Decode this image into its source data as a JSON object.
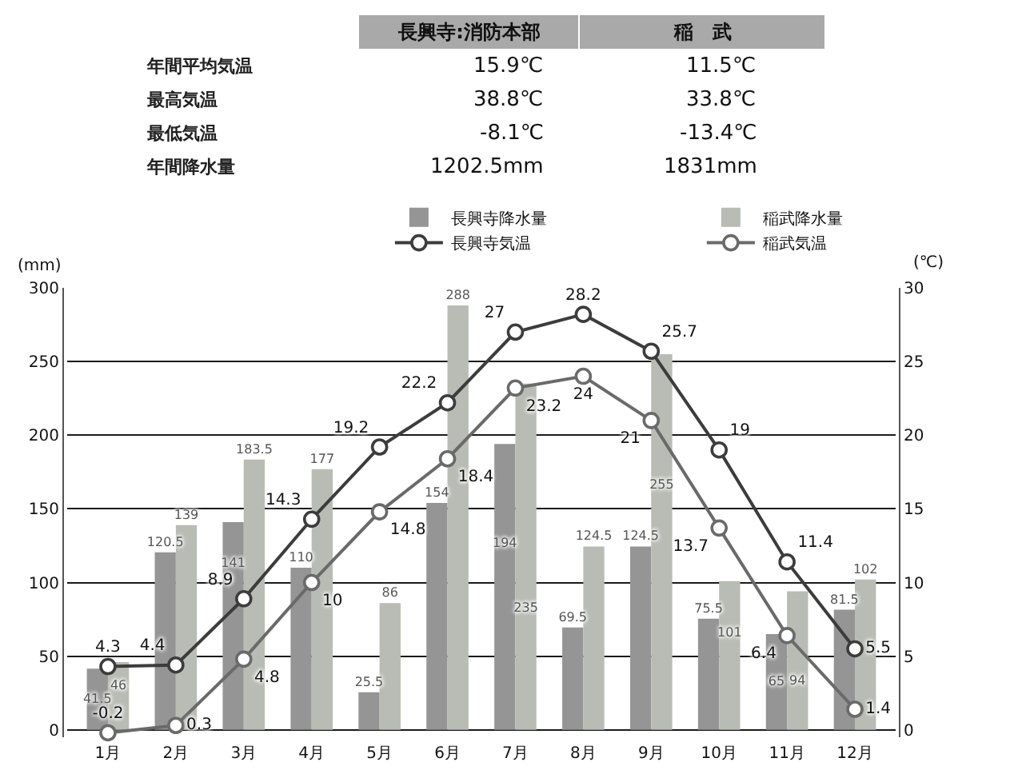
{
  "chart_data": {
    "type": "bar",
    "categories": [
      "1月",
      "2月",
      "3月",
      "4月",
      "5月",
      "6月",
      "7月",
      "8月",
      "9月",
      "10月",
      "11月",
      "12月"
    ],
    "series": [
      {
        "name": "長興寺降水量",
        "color": "#959595",
        "values": [
          41.5,
          120.5,
          141,
          110,
          25.5,
          154,
          194,
          69.5,
          124.5,
          75.5,
          65,
          81.5
        ]
      },
      {
        "name": "稲武降水量",
        "color": "#b9bcb4",
        "values": [
          46,
          139,
          183.5,
          177,
          86,
          288,
          235,
          124.5,
          255,
          101,
          94,
          102
        ]
      },
      {
        "name": "長興寺気温",
        "type": "line",
        "axis": "y2",
        "color": "#3c3c3c",
        "values": [
          4.3,
          4.4,
          8.9,
          14.3,
          19.2,
          22.2,
          27,
          28.2,
          25.7,
          19,
          11.4,
          5.5
        ]
      },
      {
        "name": "稲武気温",
        "type": "line",
        "axis": "y2",
        "color": "#6a6a6a",
        "values": [
          -0.2,
          0.3,
          4.8,
          10,
          14.8,
          18.4,
          23.2,
          24,
          21,
          13.7,
          6.4,
          1.4
        ]
      }
    ],
    "ylabel": "(mm)",
    "y2label": "(℃)",
    "ylim": [
      -5,
      300
    ],
    "yticks": [
      0,
      50,
      100,
      150,
      200,
      250,
      300
    ],
    "y2lim": [
      -0.5,
      30
    ],
    "y2ticks": [
      0,
      5,
      10,
      15,
      20,
      25,
      30
    ],
    "annotations": [
      "長興寺:消防本部",
      "稲　武",
      "年間平均気温",
      "15.9℃",
      "11.5℃",
      "最高気温",
      "38.8℃",
      "33.8℃",
      "最低気温",
      "-8.1℃",
      "-13.4℃",
      "年間降水量",
      "1202.5mm",
      "1831mm"
    ],
    "data_labels": true,
    "grid": "y",
    "legend": "top",
    "marker": "circle"
  }
}
